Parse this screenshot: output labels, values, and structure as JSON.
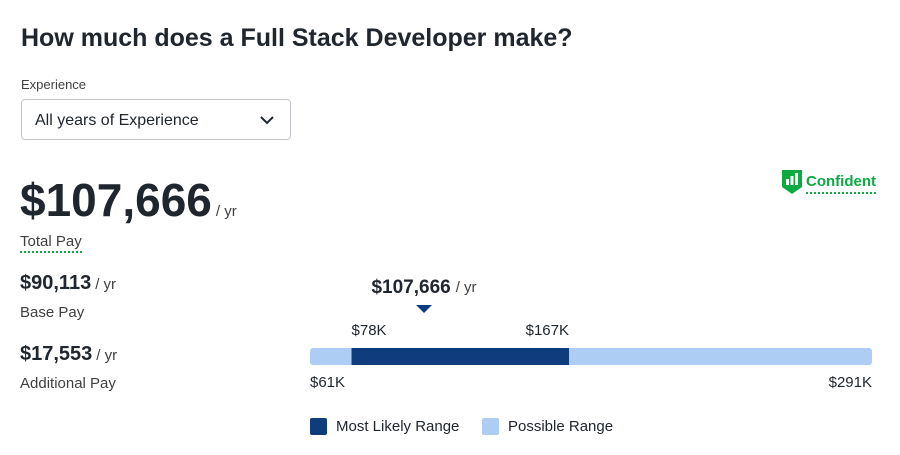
{
  "header": {
    "title": "How much does a Full Stack Developer make?"
  },
  "filter": {
    "label": "Experience",
    "selected": "All years of Experience"
  },
  "confidence": "Confident",
  "pay": {
    "total": {
      "amount": "$107,666",
      "unit": "/ yr",
      "label": "Total Pay"
    },
    "base": {
      "amount": "$90,113",
      "unit": "/ yr",
      "label": "Base Pay"
    },
    "additional": {
      "amount": "$17,553",
      "unit": "/ yr",
      "label": "Additional Pay"
    }
  },
  "range": {
    "median": {
      "value": 107666,
      "label": "$107,666"
    },
    "median_unit": "/ yr",
    "min": {
      "value": 61000,
      "label": "$61K"
    },
    "low": {
      "value": 78000,
      "label": "$78K"
    },
    "high": {
      "value": 167000,
      "label": "$167K"
    },
    "max": {
      "value": 291000,
      "label": "$291K"
    },
    "likely_color": "#0e3c7d",
    "possible_color": "#aecdf5",
    "legend": {
      "likely": "Most Likely Range",
      "possible": "Possible Range"
    }
  }
}
